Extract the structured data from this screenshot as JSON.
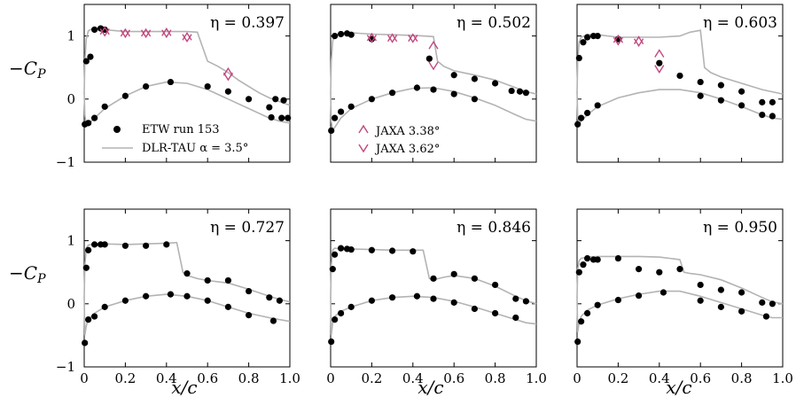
{
  "figure": {
    "ylabel": "−C_P",
    "xlabel": "x/c"
  },
  "chart_data": [
    {
      "type": "line",
      "annotation": "η = 0.397",
      "xlim": [
        0,
        1.0
      ],
      "ylim": [
        -1,
        1.5
      ],
      "xticks": [
        "0",
        "0.2",
        "0.4",
        "0.6",
        "0.8",
        "1.0"
      ],
      "yticks": [
        "−1",
        "0",
        "1"
      ],
      "series": [
        {
          "name": "DLR-TAU α = 3.5°",
          "kind": "line",
          "x": [
            0,
            0.003,
            0.01,
            0.02,
            0.04,
            0.06,
            0.1,
            0.2,
            0.3,
            0.4,
            0.5,
            0.55,
            0.6,
            0.65,
            0.7,
            0.75,
            0.8,
            0.85,
            0.9,
            0.95,
            1.0
          ],
          "y": [
            0.1,
            0.6,
            0.95,
            1.08,
            1.12,
            1.12,
            1.1,
            1.07,
            1.07,
            1.07,
            1.07,
            1.06,
            0.6,
            0.52,
            0.42,
            0.3,
            0.2,
            0.1,
            0.02,
            -0.04,
            -0.1
          ]
        },
        {
          "name": "",
          "kind": "line",
          "x": [
            0,
            0.003,
            0.01,
            0.02,
            0.05,
            0.1,
            0.2,
            0.3,
            0.4,
            0.5,
            0.6,
            0.7,
            0.8,
            0.9,
            0.95,
            1.0
          ],
          "y": [
            0.1,
            -0.25,
            -0.4,
            -0.4,
            -0.3,
            -0.15,
            0.05,
            0.2,
            0.27,
            0.25,
            0.15,
            0.0,
            -0.15,
            -0.3,
            -0.35,
            -0.38
          ]
        },
        {
          "name": "ETW run 153",
          "kind": "scatter",
          "x": [
            0.003,
            0.01,
            0.03,
            0.05,
            0.08,
            0.1,
            0.02,
            0.05,
            0.1,
            0.2,
            0.3,
            0.42,
            0.6,
            0.7,
            0.8,
            0.9,
            0.93,
            0.97,
            0.91,
            0.96,
            0.99
          ],
          "y": [
            -0.4,
            0.6,
            0.67,
            1.1,
            1.12,
            1.1,
            -0.38,
            -0.3,
            -0.12,
            0.05,
            0.2,
            0.27,
            0.2,
            0.12,
            0.0,
            -0.13,
            0.0,
            -0.02,
            -0.29,
            -0.3,
            -0.3
          ]
        },
        {
          "name": "JAXA 3.38°",
          "kind": "marker-up",
          "x": [
            0.1,
            0.2,
            0.3,
            0.4,
            0.5,
            0.7
          ],
          "y": [
            1.08,
            1.05,
            1.05,
            1.06,
            0.99,
            0.43
          ]
        },
        {
          "name": "JAXA 3.62°",
          "kind": "marker-down",
          "x": [
            0.1,
            0.2,
            0.3,
            0.4,
            0.5,
            0.7
          ],
          "y": [
            1.06,
            1.04,
            1.04,
            1.04,
            0.97,
            0.36
          ]
        }
      ]
    },
    {
      "type": "line",
      "annotation": "η = 0.502",
      "xlim": [
        0,
        1.0
      ],
      "ylim": [
        -1,
        1.5
      ],
      "xticks": [
        "0",
        "0.2",
        "0.4",
        "0.6",
        "0.8",
        "1.0"
      ],
      "yticks": [],
      "series": [
        {
          "name": "DLR-TAU α = 3.5°",
          "kind": "line",
          "x": [
            0,
            0.003,
            0.01,
            0.02,
            0.04,
            0.1,
            0.2,
            0.3,
            0.4,
            0.45,
            0.5,
            0.52,
            0.55,
            0.6,
            0.7,
            0.8,
            0.9,
            0.95,
            1.0
          ],
          "y": [
            0.1,
            0.6,
            0.92,
            1.0,
            1.04,
            1.05,
            1.03,
            1.02,
            1.01,
            1.0,
            0.99,
            0.6,
            0.52,
            0.45,
            0.38,
            0.3,
            0.18,
            0.12,
            0.08
          ]
        },
        {
          "name": "",
          "kind": "line",
          "x": [
            0,
            0.003,
            0.01,
            0.02,
            0.05,
            0.1,
            0.2,
            0.3,
            0.4,
            0.5,
            0.6,
            0.7,
            0.8,
            0.9,
            0.95,
            1.0
          ],
          "y": [
            0.1,
            -0.35,
            -0.5,
            -0.45,
            -0.3,
            -0.15,
            0.0,
            0.1,
            0.17,
            0.18,
            0.12,
            0.02,
            -0.1,
            -0.25,
            -0.32,
            -0.35
          ]
        },
        {
          "name": "ETW run 153",
          "kind": "scatter",
          "x": [
            0.003,
            0.02,
            0.05,
            0.08,
            0.1,
            0.2,
            0.48,
            0.6,
            0.7,
            0.8,
            0.88,
            0.92,
            0.95,
            0.02,
            0.05,
            0.1,
            0.2,
            0.3,
            0.42,
            0.5,
            0.6,
            0.7
          ],
          "y": [
            -0.5,
            1.0,
            1.03,
            1.04,
            1.02,
            0.95,
            0.64,
            0.38,
            0.32,
            0.25,
            0.13,
            0.12,
            0.1,
            -0.3,
            -0.2,
            -0.12,
            0.0,
            0.1,
            0.18,
            0.15,
            0.08,
            0.0
          ]
        },
        {
          "name": "JAXA 3.38°",
          "kind": "marker-up",
          "x": [
            0.2,
            0.3,
            0.4,
            0.5
          ],
          "y": [
            0.98,
            0.97,
            0.97,
            0.85
          ]
        },
        {
          "name": "JAXA 3.62°",
          "kind": "marker-down",
          "x": [
            0.2,
            0.3,
            0.4,
            0.5
          ],
          "y": [
            0.96,
            0.96,
            0.96,
            0.53
          ]
        }
      ]
    },
    {
      "type": "line",
      "annotation": "η = 0.603",
      "xlim": [
        0,
        1.0
      ],
      "ylim": [
        -1,
        1.5
      ],
      "xticks": [
        "0",
        "0.2",
        "0.4",
        "0.6",
        "0.8",
        "1.0"
      ],
      "yticks": [],
      "series": [
        {
          "name": "DLR-TAU α = 3.5°",
          "kind": "line",
          "x": [
            0,
            0.003,
            0.01,
            0.02,
            0.05,
            0.1,
            0.2,
            0.3,
            0.4,
            0.5,
            0.55,
            0.6,
            0.62,
            0.65,
            0.7,
            0.8,
            0.9,
            1.0
          ],
          "y": [
            0.1,
            0.6,
            0.9,
            0.98,
            1.02,
            1.02,
            0.98,
            0.98,
            0.98,
            1.0,
            1.06,
            1.09,
            0.5,
            0.42,
            0.35,
            0.25,
            0.15,
            0.08
          ]
        },
        {
          "name": "",
          "kind": "line",
          "x": [
            0,
            0.003,
            0.01,
            0.02,
            0.05,
            0.1,
            0.2,
            0.3,
            0.4,
            0.5,
            0.6,
            0.7,
            0.8,
            0.9,
            0.95,
            1.0
          ],
          "y": [
            0.1,
            -0.3,
            -0.4,
            -0.35,
            -0.25,
            -0.12,
            0.02,
            0.1,
            0.15,
            0.15,
            0.1,
            0.0,
            -0.12,
            -0.25,
            -0.3,
            -0.32
          ]
        },
        {
          "name": "ETW run 153",
          "kind": "scatter",
          "x": [
            0.003,
            0.01,
            0.03,
            0.05,
            0.08,
            0.1,
            0.2,
            0.4,
            0.5,
            0.6,
            0.7,
            0.8,
            0.9,
            0.95,
            0.02,
            0.05,
            0.1,
            0.6,
            0.7,
            0.8,
            0.9,
            0.95
          ],
          "y": [
            -0.4,
            0.65,
            0.9,
            0.98,
            1.0,
            1.0,
            0.95,
            0.57,
            0.37,
            0.27,
            0.22,
            0.12,
            -0.05,
            -0.05,
            -0.3,
            -0.22,
            -0.1,
            0.05,
            -0.02,
            -0.1,
            -0.25,
            -0.27
          ]
        },
        {
          "name": "JAXA 3.38°",
          "kind": "marker-up",
          "x": [
            0.2,
            0.3,
            0.4
          ],
          "y": [
            0.95,
            0.93,
            0.72
          ]
        },
        {
          "name": "JAXA 3.62°",
          "kind": "marker-down",
          "x": [
            0.2,
            0.3,
            0.4
          ],
          "y": [
            0.92,
            0.9,
            0.48
          ]
        }
      ]
    },
    {
      "type": "line",
      "annotation": "η = 0.727",
      "xlim": [
        0,
        1.0
      ],
      "ylim": [
        -1,
        1.5
      ],
      "xticks": [
        "0",
        "0.2",
        "0.4",
        "0.6",
        "0.8",
        "1.0"
      ],
      "yticks": [
        "−1",
        "0",
        "1"
      ],
      "series": [
        {
          "name": "DLR-TAU α = 3.5°",
          "kind": "line",
          "x": [
            0,
            0.003,
            0.01,
            0.02,
            0.05,
            0.1,
            0.2,
            0.3,
            0.4,
            0.45,
            0.48,
            0.5,
            0.55,
            0.6,
            0.7,
            0.8,
            0.9,
            0.95,
            1.0
          ],
          "y": [
            0.1,
            0.6,
            0.88,
            0.93,
            0.95,
            0.95,
            0.94,
            0.95,
            0.96,
            0.97,
            0.5,
            0.45,
            0.4,
            0.37,
            0.33,
            0.23,
            0.12,
            0.07,
            0.03
          ]
        },
        {
          "name": "",
          "kind": "line",
          "x": [
            0,
            0.003,
            0.01,
            0.02,
            0.05,
            0.1,
            0.2,
            0.3,
            0.4,
            0.5,
            0.6,
            0.7,
            0.8,
            0.9,
            0.95,
            1.0
          ],
          "y": [
            0.1,
            -0.5,
            -0.35,
            -0.25,
            -0.15,
            -0.05,
            0.05,
            0.12,
            0.15,
            0.12,
            0.05,
            -0.05,
            -0.15,
            -0.22,
            -0.25,
            -0.28
          ]
        },
        {
          "name": "ETW run 153",
          "kind": "scatter",
          "x": [
            0.003,
            0.01,
            0.02,
            0.05,
            0.08,
            0.1,
            0.2,
            0.3,
            0.4,
            0.5,
            0.6,
            0.7,
            0.8,
            0.9,
            0.95,
            0.02,
            0.05,
            0.1,
            0.2,
            0.3,
            0.42,
            0.5,
            0.6,
            0.7,
            0.8,
            0.92
          ],
          "y": [
            -0.62,
            0.57,
            0.85,
            0.94,
            0.94,
            0.94,
            0.92,
            0.92,
            0.94,
            0.48,
            0.37,
            0.37,
            0.2,
            0.1,
            0.05,
            -0.25,
            -0.2,
            -0.05,
            0.05,
            0.12,
            0.15,
            0.12,
            0.05,
            -0.05,
            -0.18,
            -0.27
          ]
        }
      ]
    },
    {
      "type": "line",
      "annotation": "η = 0.846",
      "xlim": [
        0,
        1.0
      ],
      "ylim": [
        -1,
        1.5
      ],
      "xticks": [
        "0",
        "0.2",
        "0.4",
        "0.6",
        "0.8",
        "1.0"
      ],
      "yticks": [],
      "series": [
        {
          "name": "DLR-TAU α = 3.5°",
          "kind": "line",
          "x": [
            0,
            0.003,
            0.01,
            0.02,
            0.05,
            0.1,
            0.2,
            0.3,
            0.4,
            0.45,
            0.48,
            0.5,
            0.55,
            0.6,
            0.7,
            0.8,
            0.9,
            0.95,
            1.0
          ],
          "y": [
            0.1,
            0.6,
            0.85,
            0.88,
            0.87,
            0.87,
            0.86,
            0.85,
            0.85,
            0.85,
            0.4,
            0.38,
            0.42,
            0.45,
            0.4,
            0.28,
            0.12,
            0.05,
            0.0
          ]
        },
        {
          "name": "",
          "kind": "line",
          "x": [
            0,
            0.003,
            0.01,
            0.02,
            0.05,
            0.1,
            0.2,
            0.3,
            0.4,
            0.5,
            0.6,
            0.7,
            0.8,
            0.9,
            0.95,
            1.0
          ],
          "y": [
            0.1,
            -0.5,
            -0.3,
            -0.2,
            -0.12,
            -0.05,
            0.05,
            0.1,
            0.12,
            0.1,
            0.04,
            -0.05,
            -0.15,
            -0.25,
            -0.3,
            -0.32
          ]
        },
        {
          "name": "ETW run 153",
          "kind": "scatter",
          "x": [
            0.003,
            0.01,
            0.02,
            0.05,
            0.08,
            0.1,
            0.2,
            0.3,
            0.4,
            0.5,
            0.6,
            0.7,
            0.8,
            0.9,
            0.95,
            0.02,
            0.05,
            0.1,
            0.2,
            0.3,
            0.42,
            0.5,
            0.6,
            0.7,
            0.8,
            0.9
          ],
          "y": [
            -0.6,
            0.55,
            0.78,
            0.88,
            0.87,
            0.86,
            0.85,
            0.84,
            0.83,
            0.4,
            0.47,
            0.4,
            0.3,
            0.08,
            0.04,
            -0.25,
            -0.15,
            -0.05,
            0.05,
            0.1,
            0.12,
            0.08,
            0.02,
            -0.08,
            -0.15,
            -0.22
          ]
        }
      ]
    },
    {
      "type": "line",
      "annotation": "η = 0.950",
      "xlim": [
        0,
        1.0
      ],
      "ylim": [
        -1,
        1.5
      ],
      "xticks": [
        "0",
        "0.2",
        "0.4",
        "0.6",
        "0.8",
        "1.0"
      ],
      "yticks": [],
      "series": [
        {
          "name": "DLR-TAU α = 3.5°",
          "kind": "line",
          "x": [
            0,
            0.003,
            0.01,
            0.02,
            0.05,
            0.1,
            0.2,
            0.3,
            0.4,
            0.45,
            0.5,
            0.52,
            0.55,
            0.6,
            0.7,
            0.8,
            0.9,
            0.95,
            1.0
          ],
          "y": [
            0.1,
            0.55,
            0.68,
            0.72,
            0.74,
            0.75,
            0.75,
            0.75,
            0.74,
            0.72,
            0.7,
            0.5,
            0.48,
            0.46,
            0.38,
            0.25,
            0.1,
            0.03,
            0.0
          ]
        },
        {
          "name": "",
          "kind": "line",
          "x": [
            0,
            0.003,
            0.01,
            0.02,
            0.05,
            0.1,
            0.2,
            0.3,
            0.4,
            0.5,
            0.6,
            0.7,
            0.8,
            0.9,
            0.95,
            1.0
          ],
          "y": [
            0.1,
            -0.45,
            -0.3,
            -0.2,
            -0.1,
            -0.02,
            0.08,
            0.15,
            0.2,
            0.2,
            0.12,
            0.02,
            -0.08,
            -0.18,
            -0.22,
            -0.22
          ]
        },
        {
          "name": "ETW run 153",
          "kind": "scatter",
          "x": [
            0.003,
            0.01,
            0.03,
            0.05,
            0.08,
            0.1,
            0.2,
            0.3,
            0.4,
            0.5,
            0.6,
            0.7,
            0.8,
            0.9,
            0.95,
            0.02,
            0.05,
            0.1,
            0.2,
            0.3,
            0.42,
            0.6,
            0.7,
            0.8,
            0.92
          ],
          "y": [
            -0.6,
            0.5,
            0.62,
            0.72,
            0.7,
            0.7,
            0.72,
            0.55,
            0.5,
            0.55,
            0.3,
            0.22,
            0.18,
            0.02,
            0.0,
            -0.28,
            -0.15,
            -0.02,
            0.06,
            0.13,
            0.18,
            0.05,
            -0.05,
            -0.12,
            -0.2
          ]
        }
      ]
    }
  ]
}
